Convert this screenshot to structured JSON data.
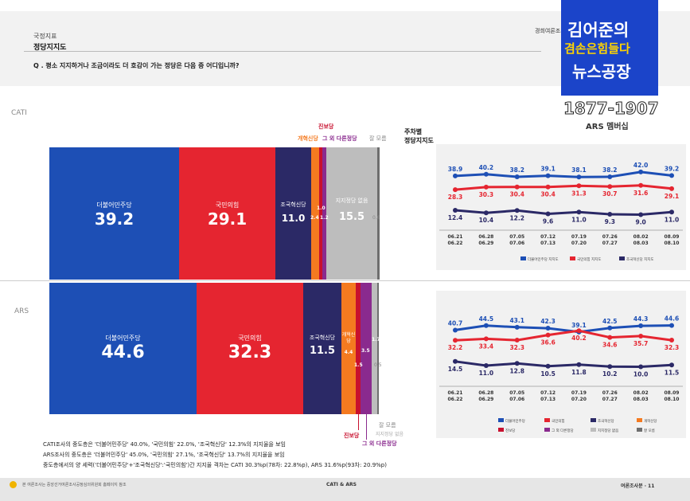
{
  "header": {
    "section": "국정지표",
    "title": "정당지지도",
    "question": "Q . 평소 지지하거나 조금이라도 더 호감이 가는 정당은 다음 중 어디입니까?",
    "publisher": "경희여론조사"
  },
  "logo": {
    "line1": "김어준의",
    "line2": "겸손은힘들다",
    "line3": "뉴스공장",
    "number": "1877-1907",
    "sub": "ARS 멤버십"
  },
  "labels": {
    "cati": "CATI",
    "ars": "ARS",
    "weekly_title_1": "주차별",
    "weekly_title_2": "정당지지도",
    "jinbo_top": "진보당",
    "gaehyuk_top": "개혁신당",
    "other_top": "그 외 다른정당",
    "dontknow_top": "잘 모름",
    "jinbo_bottom": "진보당",
    "other_bottom": "그 외 다른정당",
    "dontknow_bottom": "잘 모름",
    "none_bottom": "지지정당 없음"
  },
  "notes": [
    "CATI조사의 중도층은 '더불어민주당' 40.0%, '국민의힘' 22.0%, '조국혁신당' 12.3%의 지지율을 보임",
    "ARS조사의 중도층은 '더불어민주당' 45.0%, '국민의힘' 27.1%, '조국혁신당' 13.7%의 지지율을 보임",
    "중도층에서의 양 세력('더불어민주당'+'조국혁신당':'국민의힘')간 지지율 격차는 CATI 30.3%p(78차: 22.8%p), ARS 31.6%p(93차: 20.9%p)"
  ],
  "footer": {
    "left": "본 여론조사는 중앙선거여론조사공정심의위원회 홈페이지 참조",
    "center": "CATI & ARS",
    "right": "여론조사분 · 11"
  },
  "colors": {
    "minjoo": "#1d4fb5",
    "ppp": "#e52530",
    "jokuk": "#2b2966",
    "gaehyuk": "#f47a20",
    "jinbo": "#c8102e",
    "other": "#8a2a8e",
    "none": "#bdbdbd",
    "dontknow": "#6e6e6e"
  },
  "chart_data": [
    {
      "type": "bar",
      "name": "CATI",
      "stacked": true,
      "categories": [
        "더불어민주당",
        "국민의힘",
        "조국혁신당",
        "개혁신당",
        "진보당",
        "그 외 다른정당",
        "지지정당 없음",
        "잘 모름"
      ],
      "values": [
        39.2,
        29.1,
        11.0,
        2.4,
        1.0,
        1.2,
        15.5,
        0.6
      ],
      "value_labels": [
        "39.2",
        "29.1",
        "11.0",
        "2.4",
        "1.0",
        "1.2",
        "15.5",
        "0.6"
      ]
    },
    {
      "type": "bar",
      "name": "ARS",
      "stacked": true,
      "categories": [
        "더불어민주당",
        "국민의힘",
        "조국혁신당",
        "개혁신당",
        "진보당",
        "그 외 다른정당",
        "지지정당 없음",
        "잘 모름"
      ],
      "values": [
        44.6,
        32.3,
        11.5,
        4.4,
        1.5,
        3.5,
        1.7,
        0.5
      ],
      "value_labels": [
        "44.6",
        "32.3",
        "11.5",
        "4.4",
        "1.5",
        "3.5",
        "1.7",
        "0.5"
      ]
    },
    {
      "type": "line",
      "name": "CATI weekly",
      "x": [
        [
          "06.21",
          "06.22"
        ],
        [
          "06.28",
          "06.29"
        ],
        [
          "07.05",
          "07.06"
        ],
        [
          "07.12",
          "07.13"
        ],
        [
          "07.19",
          "07.20"
        ],
        [
          "07.26",
          "07.27"
        ],
        [
          "08.02",
          "08.03"
        ],
        [
          "08.09",
          "08.10"
        ]
      ],
      "series": [
        {
          "name": "더불어민주당 지지도",
          "values": [
            38.9,
            40.2,
            38.2,
            39.1,
            38.1,
            38.2,
            42.0,
            39.2
          ]
        },
        {
          "name": "국민의힘 지지도",
          "values": [
            28.3,
            30.3,
            30.4,
            30.4,
            31.3,
            30.7,
            31.6,
            29.1
          ]
        },
        {
          "name": "조국혁신당 지지도",
          "values": [
            12.4,
            10.4,
            12.2,
            9.6,
            11.0,
            9.3,
            9.0,
            11.0
          ]
        }
      ]
    },
    {
      "type": "line",
      "name": "ARS weekly",
      "x": [
        [
          "06.21",
          "06.22"
        ],
        [
          "06.28",
          "06.29"
        ],
        [
          "07.05",
          "07.06"
        ],
        [
          "07.12",
          "07.13"
        ],
        [
          "07.19",
          "07.20"
        ],
        [
          "07.26",
          "07.27"
        ],
        [
          "08.02",
          "08.03"
        ],
        [
          "08.09",
          "08.10"
        ]
      ],
      "series": [
        {
          "name": "더불어민주당",
          "values": [
            40.7,
            44.5,
            43.1,
            42.3,
            39.1,
            42.5,
            44.3,
            44.6
          ]
        },
        {
          "name": "국민의힘",
          "values": [
            32.2,
            33.4,
            32.3,
            36.6,
            40.2,
            34.6,
            35.7,
            32.3
          ]
        },
        {
          "name": "조국혁신당",
          "values": [
            14.5,
            11.0,
            12.8,
            10.5,
            11.8,
            10.2,
            10.0,
            11.5
          ]
        }
      ],
      "legend": [
        "더불어민주당",
        "국민의힘",
        "조국혁신당",
        "개혁신당",
        "진보당",
        "그 외 다른정당",
        "지지정당 없음",
        "잘 모름"
      ]
    }
  ]
}
